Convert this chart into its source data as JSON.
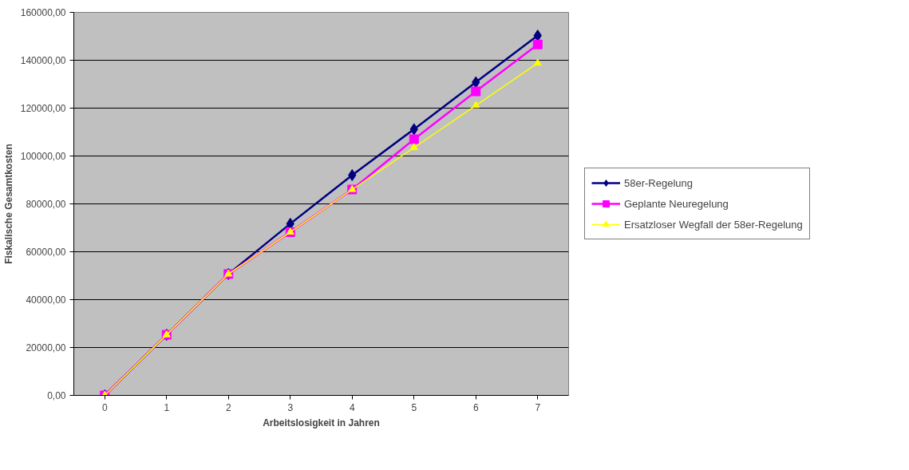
{
  "chart_data": {
    "type": "line",
    "xlabel": "Arbeitslosigkeit in Jahren",
    "ylabel": "Fiskalische Gesamtkosten",
    "categories": [
      "0",
      "1",
      "2",
      "3",
      "4",
      "5",
      "6",
      "7"
    ],
    "series": [
      {
        "name": "58er-Regelung",
        "color": "#000080",
        "marker": "diamond",
        "values": [
          0,
          25300,
          50700,
          71700,
          92000,
          111200,
          130800,
          150300
        ]
      },
      {
        "name": "Geplante Neuregelung",
        "color": "#ff00ff",
        "marker": "square",
        "values": [
          0,
          25300,
          50700,
          68200,
          86000,
          107000,
          127000,
          146600
        ]
      },
      {
        "name": "Ersatzloser Wegfall der 58er-Regelung",
        "color": "#ffff00",
        "marker": "triangle",
        "values": [
          0,
          25300,
          50700,
          68200,
          86000,
          103500,
          121100,
          138800
        ]
      }
    ],
    "ylim": [
      0,
      160000
    ],
    "yticks": [
      {
        "value": 0,
        "label": "0,00"
      },
      {
        "value": 20000,
        "label": "20000,00"
      },
      {
        "value": 40000,
        "label": "40000,00"
      },
      {
        "value": 60000,
        "label": "60000,00"
      },
      {
        "value": 80000,
        "label": "80000,00"
      },
      {
        "value": 100000,
        "label": "100000,00"
      },
      {
        "value": 120000,
        "label": "120000,00"
      },
      {
        "value": 140000,
        "label": "140000,00"
      },
      {
        "value": 160000,
        "label": "160000,00"
      }
    ],
    "grid": "y",
    "legend": "right"
  }
}
